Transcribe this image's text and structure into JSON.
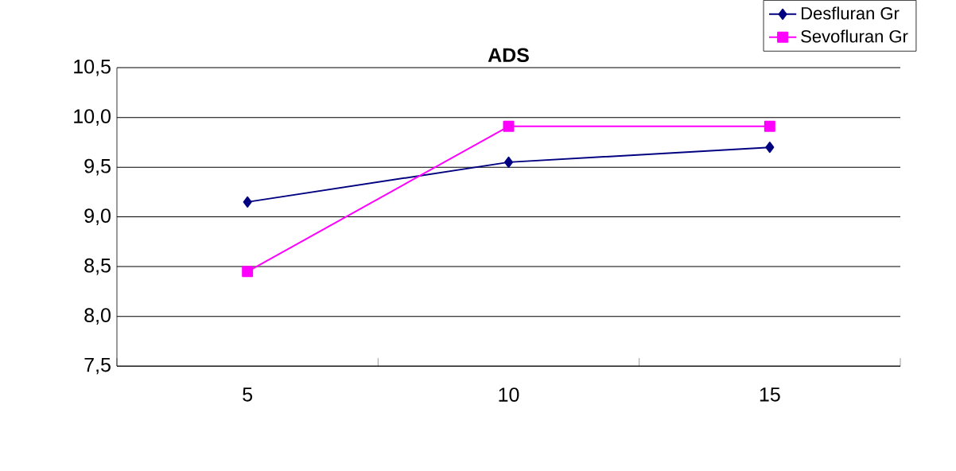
{
  "chart_data": {
    "type": "line",
    "title": "ADS",
    "categories": [
      "5",
      "10",
      "15"
    ],
    "series": [
      {
        "name": "Desfluran Gr",
        "color": "#000080",
        "marker": "diamond",
        "values": [
          9.15,
          9.55,
          9.7
        ]
      },
      {
        "name": "Sevofluran Gr",
        "color": "#ff00ff",
        "marker": "square",
        "values": [
          8.45,
          9.91,
          9.91
        ]
      }
    ],
    "ylim": [
      7.5,
      10.5
    ],
    "yticks": [
      {
        "value": 7.5,
        "label": "7,5"
      },
      {
        "value": 8.0,
        "label": "8,0"
      },
      {
        "value": 8.5,
        "label": "8,5"
      },
      {
        "value": 9.0,
        "label": "9,0"
      },
      {
        "value": 9.5,
        "label": "9,5"
      },
      {
        "value": 10.0,
        "label": "10,0"
      },
      {
        "value": 10.5,
        "label": "10,5"
      }
    ],
    "grid": "y",
    "legend": "top right",
    "line_style": "solid"
  }
}
